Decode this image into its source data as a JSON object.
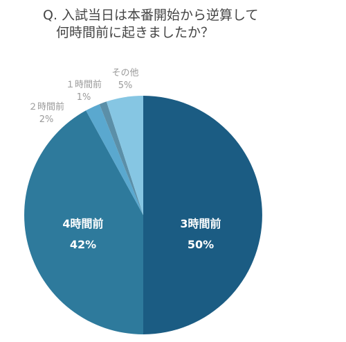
{
  "question": {
    "line1": "Q. 入試当日は本番開始から逆算して",
    "line2": "何時間前に起きましたか？"
  },
  "chart_data": {
    "type": "pie",
    "title": "Q. 入試当日は本番開始から逆算して何時間前に起きましたか？",
    "slices": [
      {
        "label": "3時間前",
        "value": 50,
        "value_label": "50%",
        "color": "#1b5c83"
      },
      {
        "label": "4時間前",
        "value": 42,
        "value_label": "42%",
        "color": "#2e7a9c"
      },
      {
        "label": "２時間前",
        "value": 2,
        "value_label": "2%",
        "color": "#5aa8cf"
      },
      {
        "label": "１時間前",
        "value": 1,
        "value_label": "1%",
        "color": "#5b8fa8"
      },
      {
        "label": "その他",
        "value": 5,
        "value_label": "5%",
        "color": "#86c6e3"
      }
    ]
  }
}
